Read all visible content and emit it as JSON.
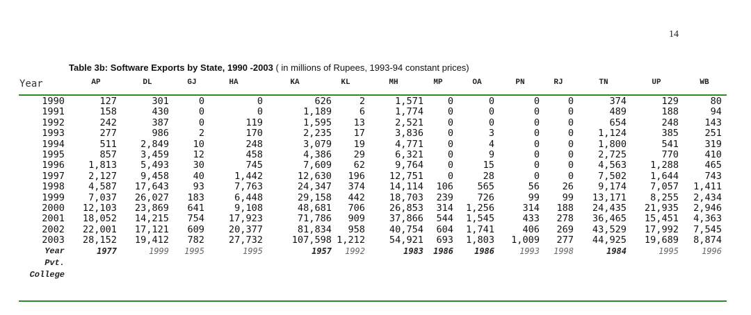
{
  "page_number": "14",
  "caption": {
    "title": "Table 3b: Software Exports by State, 1990 -2003",
    "note": " ( in millions of Rupees, 1993-94 constant prices)"
  },
  "table": {
    "year_header": "Year",
    "columns": [
      "AP",
      "DL",
      "GJ",
      "HA",
      "KA",
      "KL",
      "MH",
      "MP",
      "OA",
      "PN",
      "RJ",
      "TN",
      "UP",
      "WB"
    ],
    "rows": [
      {
        "year": "1990",
        "values": [
          "127",
          "301",
          "0",
          "0",
          "626",
          "2",
          "1,571",
          "0",
          "0",
          "0",
          "0",
          "374",
          "129",
          "80"
        ]
      },
      {
        "year": "1991",
        "values": [
          "158",
          "430",
          "0",
          "0",
          "1,189",
          "6",
          "1,774",
          "0",
          "0",
          "0",
          "0",
          "489",
          "188",
          "94"
        ]
      },
      {
        "year": "1992",
        "values": [
          "242",
          "387",
          "0",
          "119",
          "1,595",
          "13",
          "2,521",
          "0",
          "0",
          "0",
          "0",
          "654",
          "248",
          "143"
        ]
      },
      {
        "year": "1993",
        "values": [
          "277",
          "986",
          "2",
          "170",
          "2,235",
          "17",
          "3,836",
          "0",
          "3",
          "0",
          "0",
          "1,124",
          "385",
          "251"
        ]
      },
      {
        "year": "1994",
        "values": [
          "511",
          "2,849",
          "10",
          "248",
          "3,079",
          "19",
          "4,771",
          "0",
          "4",
          "0",
          "0",
          "1,800",
          "541",
          "319"
        ]
      },
      {
        "year": "1995",
        "values": [
          "857",
          "3,459",
          "12",
          "458",
          "4,386",
          "29",
          "6,321",
          "0",
          "9",
          "0",
          "0",
          "2,725",
          "770",
          "410"
        ]
      },
      {
        "year": "1996",
        "values": [
          "1,813",
          "5,493",
          "30",
          "745",
          "7,609",
          "62",
          "9,764",
          "0",
          "15",
          "0",
          "0",
          "4,563",
          "1,288",
          "465"
        ]
      },
      {
        "year": "1997",
        "values": [
          "2,127",
          "9,458",
          "40",
          "1,442",
          "12,630",
          "196",
          "12,751",
          "0",
          "28",
          "0",
          "0",
          "7,502",
          "1,644",
          "743"
        ]
      },
      {
        "year": "1998",
        "values": [
          "4,587",
          "17,643",
          "93",
          "7,763",
          "24,347",
          "374",
          "14,114",
          "106",
          "565",
          "56",
          "26",
          "9,174",
          "7,057",
          "1,411"
        ]
      },
      {
        "year": "1999",
        "values": [
          "7,037",
          "26,027",
          "183",
          "6,448",
          "29,158",
          "442",
          "18,703",
          "239",
          "726",
          "99",
          "99",
          "13,171",
          "8,255",
          "2,434"
        ]
      },
      {
        "year": "2000",
        "values": [
          "12,103",
          "23,869",
          "641",
          "9,108",
          "48,681",
          "706",
          "26,853",
          "314",
          "1,256",
          "314",
          "188",
          "24,435",
          "21,935",
          "2,946"
        ]
      },
      {
        "year": "2001",
        "values": [
          "18,052",
          "14,215",
          "754",
          "17,923",
          "71,786",
          "909",
          "37,866",
          "544",
          "1,545",
          "433",
          "278",
          "36,465",
          "15,451",
          "4,363"
        ]
      },
      {
        "year": "2002",
        "values": [
          "22,001",
          "17,121",
          "609",
          "20,377",
          "81,834",
          "958",
          "40,754",
          "604",
          "1,741",
          "406",
          "269",
          "43,529",
          "17,992",
          "7,545"
        ]
      },
      {
        "year": "2003",
        "values": [
          "28,152",
          "19,412",
          "782",
          "27,732",
          "107,598",
          "1,212",
          "54,921",
          "693",
          "1,803",
          "1,009",
          "277",
          "44,925",
          "19,689",
          "8,874"
        ]
      }
    ],
    "est_row": {
      "label_lines": [
        "Year",
        "Pvt.",
        "College"
      ],
      "values": [
        "1977",
        "1999",
        "1995",
        "1995",
        "1957",
        "1992",
        "1983",
        "1986",
        "1986",
        "1993",
        "1998",
        "1984",
        "1995",
        "1996"
      ],
      "bold": [
        true,
        false,
        false,
        false,
        true,
        false,
        true,
        true,
        true,
        false,
        false,
        true,
        false,
        false
      ]
    }
  }
}
